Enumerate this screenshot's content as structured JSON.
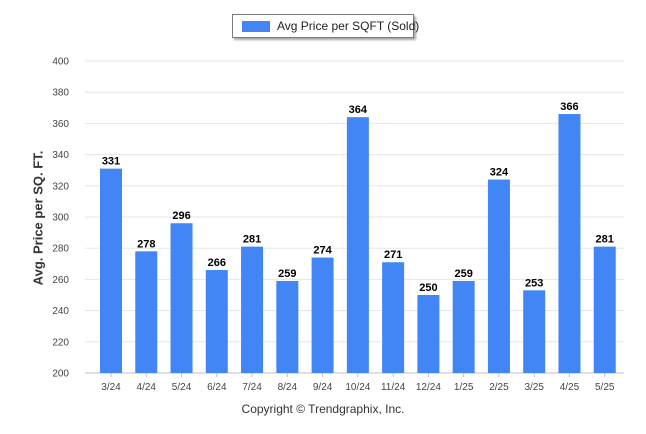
{
  "legend": {
    "label": "Avg Price per SQFT (Sold)"
  },
  "footer": {
    "copyright": "Copyright © Trendgraphix, Inc."
  },
  "colors": {
    "bar": "#4285f4",
    "grid": "#e6e6e6",
    "axis": "#c0c0c0",
    "tick_text": "#444444",
    "value_text": "#000000"
  },
  "chart_data": {
    "type": "bar",
    "title": "",
    "xlabel": "",
    "ylabel": "Avg. Price per SQ. FT.",
    "ylim": [
      200,
      400
    ],
    "yticks": [
      200,
      220,
      240,
      260,
      280,
      300,
      320,
      340,
      360,
      380,
      400
    ],
    "grid": true,
    "legend_position": "top-center",
    "categories": [
      "3/24",
      "4/24",
      "5/24",
      "6/24",
      "7/24",
      "8/24",
      "9/24",
      "10/24",
      "11/24",
      "12/24",
      "1/25",
      "2/25",
      "3/25",
      "4/25",
      "5/25"
    ],
    "series": [
      {
        "name": "Avg Price per SQFT (Sold)",
        "values": [
          331,
          278,
          296,
          266,
          281,
          259,
          274,
          364,
          271,
          250,
          259,
          324,
          253,
          366,
          281
        ]
      }
    ]
  }
}
